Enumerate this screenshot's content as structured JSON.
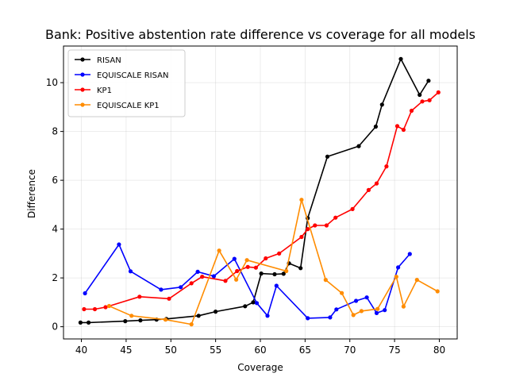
{
  "chart_data": {
    "type": "line",
    "title": "Bank: Positive abstention rate difference vs coverage for all models",
    "xlabel": "Coverage",
    "ylabel": "Difference",
    "xlim": [
      38.0,
      82.0
    ],
    "ylim": [
      -0.5,
      11.5
    ],
    "xticks": [
      40,
      45,
      50,
      55,
      60,
      65,
      70,
      75,
      80
    ],
    "yticks": [
      0,
      2,
      4,
      6,
      8,
      10
    ],
    "grid": true,
    "legend_position": "top-left",
    "series": [
      {
        "name": "RISAN",
        "color": "#000000",
        "points": [
          [
            39.9,
            0.17
          ],
          [
            40.8,
            0.17
          ],
          [
            44.9,
            0.23
          ],
          [
            46.6,
            0.26
          ],
          [
            48.4,
            0.29
          ],
          [
            49.5,
            0.32
          ],
          [
            53.1,
            0.45
          ],
          [
            55.0,
            0.62
          ],
          [
            58.3,
            0.84
          ],
          [
            59.2,
            1.0
          ],
          [
            60.1,
            2.18
          ],
          [
            61.6,
            2.15
          ],
          [
            62.6,
            2.17
          ],
          [
            63.2,
            2.6
          ],
          [
            64.5,
            2.4
          ],
          [
            65.3,
            4.45
          ],
          [
            67.5,
            6.97
          ],
          [
            71.0,
            7.4
          ],
          [
            72.9,
            8.2
          ],
          [
            73.6,
            9.1
          ],
          [
            75.7,
            10.97
          ],
          [
            77.8,
            9.5
          ],
          [
            78.8,
            10.08
          ]
        ]
      },
      {
        "name": "EQUISCALE RISAN",
        "color": "#0000ff",
        "points": [
          [
            40.4,
            1.37
          ],
          [
            44.2,
            3.37
          ],
          [
            45.5,
            2.27
          ],
          [
            48.9,
            1.52
          ],
          [
            51.1,
            1.62
          ],
          [
            53.0,
            2.25
          ],
          [
            54.8,
            2.07
          ],
          [
            57.1,
            2.78
          ],
          [
            59.6,
            0.97
          ],
          [
            60.8,
            0.45
          ],
          [
            61.8,
            1.68
          ],
          [
            65.3,
            0.35
          ],
          [
            67.8,
            0.38
          ],
          [
            68.5,
            0.71
          ],
          [
            70.7,
            1.06
          ],
          [
            71.9,
            1.2
          ],
          [
            73.0,
            0.56
          ],
          [
            73.9,
            0.68
          ],
          [
            75.4,
            2.43
          ],
          [
            76.7,
            2.98
          ]
        ]
      },
      {
        "name": "KP1",
        "color": "#ff0000",
        "points": [
          [
            40.3,
            0.72
          ],
          [
            41.5,
            0.72
          ],
          [
            42.7,
            0.8
          ],
          [
            46.5,
            1.23
          ],
          [
            49.8,
            1.15
          ],
          [
            52.3,
            1.78
          ],
          [
            53.5,
            2.05
          ],
          [
            56.1,
            1.88
          ],
          [
            57.4,
            2.28
          ],
          [
            58.6,
            2.45
          ],
          [
            59.5,
            2.42
          ],
          [
            60.6,
            2.8
          ],
          [
            62.1,
            3.0
          ],
          [
            64.6,
            3.68
          ],
          [
            65.3,
            4.0
          ],
          [
            66.1,
            4.15
          ],
          [
            67.4,
            4.15
          ],
          [
            68.4,
            4.47
          ],
          [
            70.3,
            4.82
          ],
          [
            72.1,
            5.6
          ],
          [
            73.0,
            5.87
          ],
          [
            74.1,
            6.57
          ],
          [
            75.3,
            8.22
          ],
          [
            76.0,
            8.07
          ],
          [
            76.9,
            8.85
          ],
          [
            78.1,
            9.23
          ],
          [
            78.9,
            9.28
          ],
          [
            79.9,
            9.6
          ]
        ]
      },
      {
        "name": "EQUISCALE KP1",
        "color": "#ff8c00",
        "points": [
          [
            43.1,
            0.85
          ],
          [
            45.6,
            0.45
          ],
          [
            49.4,
            0.29
          ],
          [
            52.3,
            0.1
          ],
          [
            55.4,
            3.12
          ],
          [
            57.3,
            1.93
          ],
          [
            58.5,
            2.73
          ],
          [
            62.9,
            2.28
          ],
          [
            64.6,
            5.2
          ],
          [
            67.3,
            1.92
          ],
          [
            69.1,
            1.38
          ],
          [
            70.4,
            0.48
          ],
          [
            71.3,
            0.64
          ],
          [
            73.1,
            0.73
          ],
          [
            75.2,
            2.05
          ],
          [
            76.0,
            0.83
          ],
          [
            77.5,
            1.92
          ],
          [
            79.8,
            1.45
          ]
        ]
      }
    ]
  }
}
